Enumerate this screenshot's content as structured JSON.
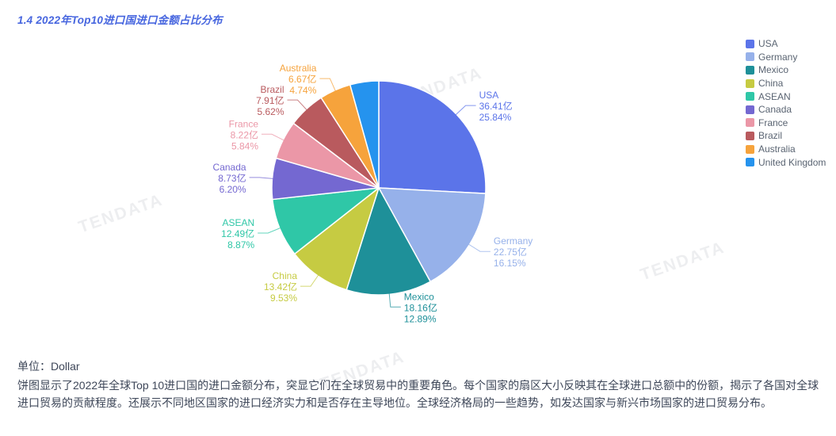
{
  "title": {
    "text": "1.4 2022年Top10进口国进口金额占比分布",
    "color": "#4766df"
  },
  "watermark": {
    "text": "TENDATA"
  },
  "footer": {
    "unit_label": "单位：Dollar",
    "description": "饼图显示了2022年全球Top 10进口国的进口金额分布，突显它们在全球贸易中的重要角色。每个国家的扇区大小反映其在全球进口总额中的份额，揭示了各国对全球进口贸易的贡献程度。还展示不同地区国家的进口经济实力和是否存在主导地位。全球经济格局的一些趋势，如发达国家与新兴市场国家的进口贸易分布。"
  },
  "chart_data": {
    "type": "pie",
    "title": "1.4 2022年Top10进口国进口金额占比分布",
    "unit": "Dollar",
    "legend_position": "right",
    "start_angle_deg": 90,
    "direction": "clockwise",
    "series": [
      {
        "name": "USA",
        "value": 36.41,
        "value_label": "36.41亿",
        "percent": 25.84,
        "percent_label": "25.84%",
        "color": "#5b74e9",
        "show_label": true
      },
      {
        "name": "Germany",
        "value": 22.75,
        "value_label": "22.75亿",
        "percent": 16.15,
        "percent_label": "16.15%",
        "color": "#96b1ea",
        "show_label": true
      },
      {
        "name": "Mexico",
        "value": 18.16,
        "value_label": "18.16亿",
        "percent": 12.89,
        "percent_label": "12.89%",
        "color": "#1e9099",
        "show_label": true
      },
      {
        "name": "China",
        "value": 13.42,
        "value_label": "13.42亿",
        "percent": 9.53,
        "percent_label": "9.53%",
        "color": "#c6cb42",
        "show_label": true
      },
      {
        "name": "ASEAN",
        "value": 12.49,
        "value_label": "12.49亿",
        "percent": 8.87,
        "percent_label": "8.87%",
        "color": "#2fc7a7",
        "show_label": true
      },
      {
        "name": "Canada",
        "value": 8.73,
        "value_label": "8.73亿",
        "percent": 6.2,
        "percent_label": "6.20%",
        "color": "#7468d1",
        "show_label": true
      },
      {
        "name": "France",
        "value": 8.22,
        "value_label": "8.22亿",
        "percent": 5.84,
        "percent_label": "5.84%",
        "color": "#eb97a7",
        "show_label": true
      },
      {
        "name": "Brazil",
        "value": 7.91,
        "value_label": "7.91亿",
        "percent": 5.62,
        "percent_label": "5.62%",
        "color": "#b95a5e",
        "show_label": true
      },
      {
        "name": "Australia",
        "value": 6.67,
        "value_label": "6.67亿",
        "percent": 4.74,
        "percent_label": "4.74%",
        "color": "#f6a33c",
        "show_label": true
      },
      {
        "name": "United Kingdom",
        "value": null,
        "value_label": "",
        "percent": 4.32,
        "percent_label": "",
        "color": "#2593ee",
        "show_label": false,
        "percent_estimated": true
      }
    ]
  }
}
